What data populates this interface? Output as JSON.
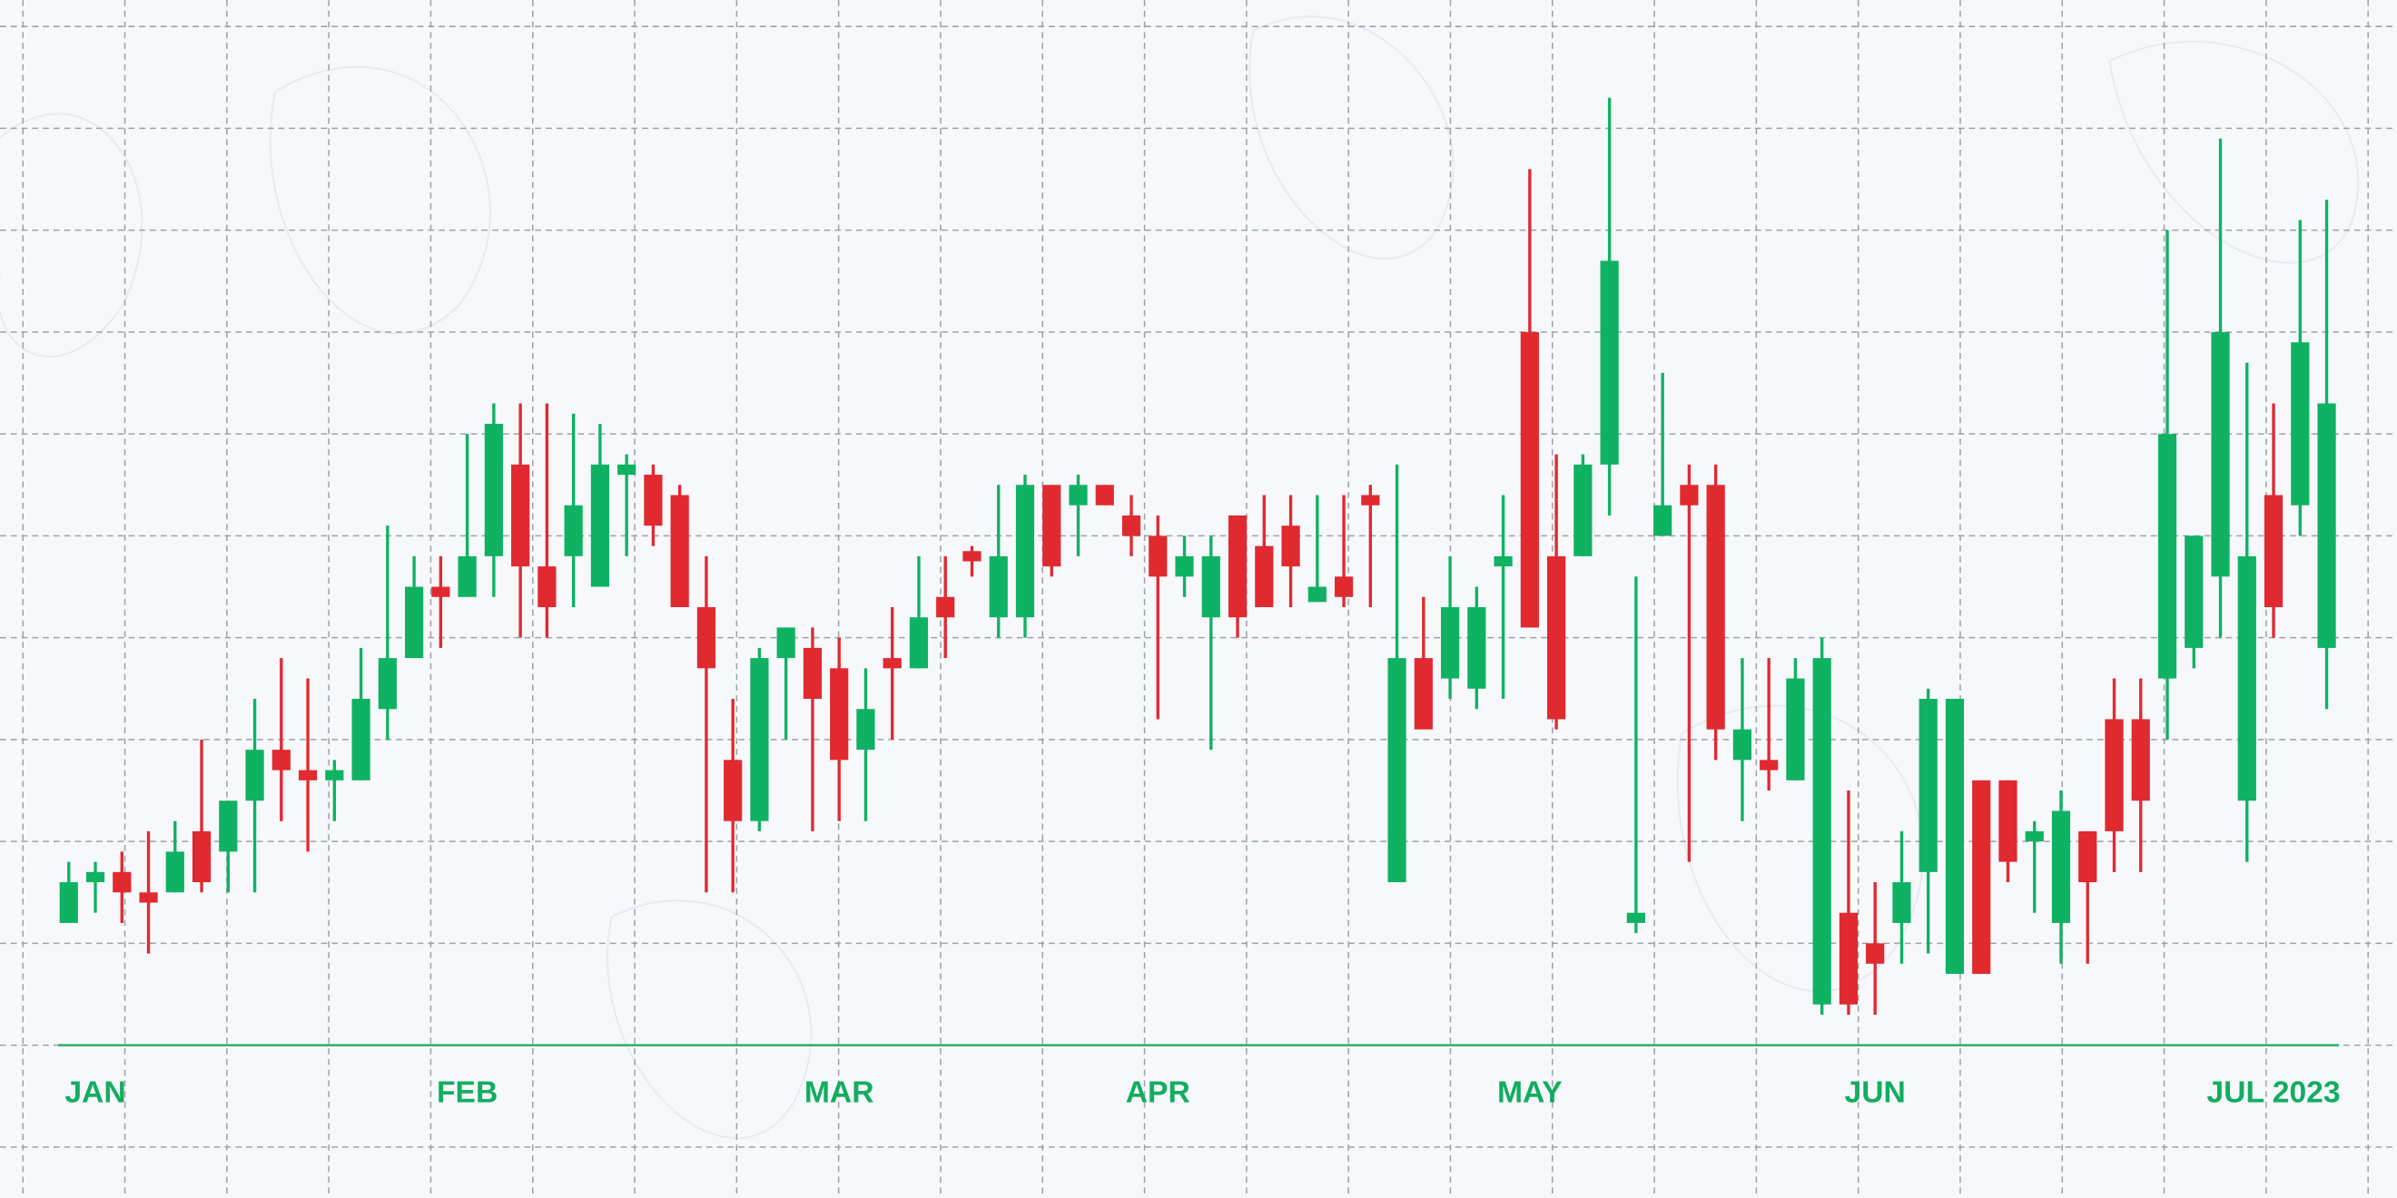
{
  "chart_data": {
    "type": "candlestick",
    "categories": [
      null,
      "JAN",
      null,
      null,
      null,
      null,
      null,
      null,
      null,
      null,
      null,
      null,
      null,
      null,
      null,
      "FEB",
      null,
      null,
      null,
      null,
      null,
      null,
      null,
      null,
      null,
      null,
      null,
      null,
      null,
      "MAR",
      null,
      null,
      null,
      null,
      null,
      null,
      null,
      null,
      null,
      null,
      null,
      "APR",
      null,
      null,
      null,
      null,
      null,
      null,
      null,
      null,
      null,
      null,
      null,
      null,
      null,
      "MAY",
      null,
      null,
      null,
      null,
      null,
      null,
      null,
      null,
      null,
      null,
      null,
      null,
      "JUN",
      null,
      null,
      null,
      null,
      null,
      null,
      null,
      null,
      null,
      null,
      null,
      null,
      null,
      null,
      "JUL 2023",
      null,
      null
    ],
    "open": [
      12,
      16,
      17,
      15,
      15,
      21,
      19,
      24,
      29,
      27,
      26,
      26,
      33,
      38,
      45,
      44,
      48,
      57,
      47,
      48,
      45,
      56,
      56,
      54,
      43,
      28,
      22,
      38,
      39,
      37,
      29,
      38,
      37,
      44,
      48.5,
      42,
      42,
      55,
      53,
      55,
      52,
      50,
      46,
      42,
      52,
      49,
      51,
      43.5,
      46,
      54,
      16,
      38,
      36,
      35,
      47,
      70,
      48,
      48,
      57,
      12,
      50,
      55,
      55,
      28,
      28,
      26,
      4,
      13,
      10,
      12,
      17,
      7,
      26,
      26,
      20,
      12,
      21,
      32,
      32,
      36,
      39,
      46,
      24,
      54,
      53,
      39
    ],
    "high": [
      18,
      18,
      19,
      21,
      22,
      30,
      24,
      34,
      38,
      36,
      28,
      39,
      51,
      48,
      48,
      60,
      63,
      63,
      63,
      62,
      61,
      58,
      57,
      55,
      48,
      34,
      39,
      41,
      41,
      40,
      37,
      43,
      48,
      48,
      49,
      55,
      56,
      55,
      56,
      55,
      54,
      52,
      50,
      50,
      52,
      54,
      54,
      54,
      54,
      55,
      57,
      44,
      48,
      45,
      54,
      86,
      58,
      58,
      93,
      46,
      66,
      57,
      57,
      38,
      38,
      38,
      40,
      25,
      16,
      21,
      35,
      34,
      26,
      26,
      22,
      25,
      21,
      36,
      36,
      80,
      50,
      89,
      67,
      63,
      81,
      83
    ],
    "low": [
      12,
      13,
      12,
      9,
      15,
      15,
      15,
      15,
      22,
      19,
      22,
      26,
      30,
      38,
      39,
      44,
      44,
      40,
      40,
      43,
      45,
      48,
      49,
      43,
      15,
      15,
      21,
      30,
      21,
      22,
      22,
      30,
      37,
      38,
      46,
      40,
      40,
      46,
      48,
      53,
      48,
      32,
      44,
      29,
      40,
      43,
      43,
      43.5,
      43,
      43,
      16,
      31,
      34,
      33,
      34,
      41,
      31,
      48,
      52,
      11,
      50,
      18,
      28,
      22,
      25,
      26,
      3,
      3,
      3,
      8,
      9,
      7,
      7,
      16,
      13,
      8,
      8,
      17,
      17,
      30,
      37,
      40,
      18,
      40,
      50,
      33
    ],
    "close": [
      16,
      17,
      15,
      14,
      19,
      16,
      24,
      29,
      27,
      26,
      27,
      34,
      38,
      45,
      44,
      48,
      61,
      47,
      43,
      53,
      57,
      57,
      51,
      43,
      37,
      22,
      38,
      41,
      34,
      28,
      33,
      37,
      42,
      42,
      47.5,
      48,
      55,
      47,
      55,
      53,
      50,
      46,
      48,
      48,
      42,
      43,
      47,
      45,
      44,
      53,
      38,
      31,
      43,
      43,
      48,
      41,
      32,
      57,
      77,
      13,
      53,
      53,
      31,
      31,
      27,
      36,
      38,
      4,
      8,
      16,
      34,
      34,
      7,
      18,
      21,
      23,
      16,
      21,
      24,
      60,
      50,
      70,
      48,
      43,
      69,
      63
    ],
    "up_color": "#0fb262",
    "down_color": "#e02a2f",
    "ylim": [
      -15,
      102.6
    ],
    "yticks": [
      -10,
      0,
      10,
      20,
      30,
      40,
      50,
      60,
      70,
      80,
      90,
      100
    ],
    "grid": true
  }
}
